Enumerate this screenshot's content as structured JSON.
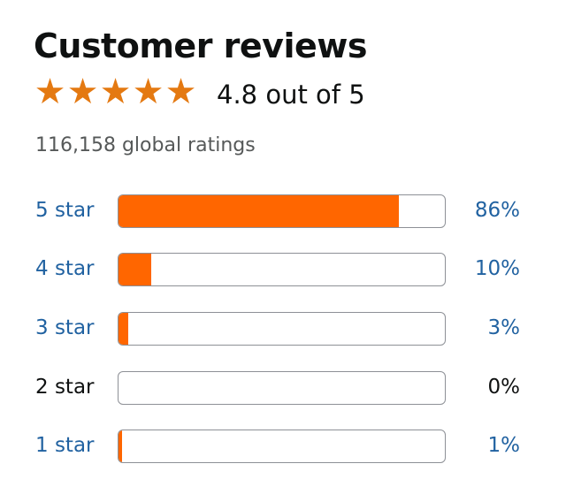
{
  "header": {
    "title": "Customer reviews",
    "rating_text": "4.8 out of 5",
    "stars": 4.8,
    "ratings_count": "116,158 global ratings"
  },
  "colors": {
    "bar_fill": "#ff6600",
    "star": "#e47911",
    "link": "#2162a1"
  },
  "histogram": [
    {
      "label": "5 star",
      "percent_text": "86%",
      "percent": 86,
      "link": true
    },
    {
      "label": "4 star",
      "percent_text": "10%",
      "percent": 10,
      "link": true
    },
    {
      "label": "3 star",
      "percent_text": "3%",
      "percent": 3,
      "link": true
    },
    {
      "label": "2 star",
      "percent_text": "0%",
      "percent": 0,
      "link": false
    },
    {
      "label": "1 star",
      "percent_text": "1%",
      "percent": 1,
      "link": true
    }
  ]
}
